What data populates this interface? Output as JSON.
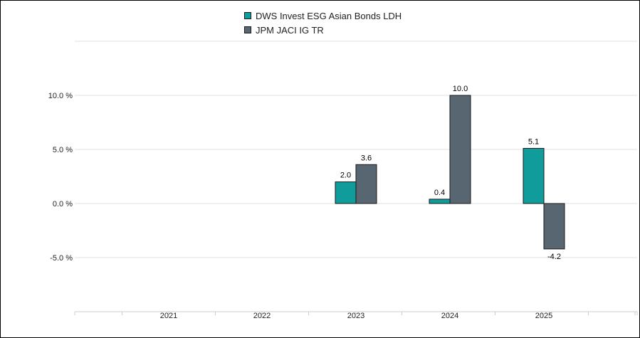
{
  "chart_data": {
    "type": "bar",
    "categories": [
      "2021",
      "2022",
      "2023",
      "2024",
      "2025"
    ],
    "series": [
      {
        "name": "DWS Invest ESG Asian Bonds LDH",
        "color": "#0f9c9a",
        "values": [
          null,
          null,
          2.0,
          0.4,
          5.1
        ],
        "labels": [
          "",
          "",
          "2.0",
          "0.4",
          "5.1"
        ]
      },
      {
        "name": "JPM JACI IG TR",
        "color": "#586672",
        "values": [
          null,
          null,
          3.6,
          10.0,
          -4.2
        ],
        "labels": [
          "",
          "",
          "3.6",
          "10.0",
          "-4.2"
        ]
      }
    ],
    "y_ticks": [
      10,
      5,
      0,
      -5
    ],
    "y_tick_labels": [
      "10.0 %",
      "5.0 %",
      "0.0 %",
      "-5.0 %"
    ],
    "ylim": [
      -9.8,
      15.8
    ],
    "grid": true,
    "legend_position": "top-center"
  }
}
